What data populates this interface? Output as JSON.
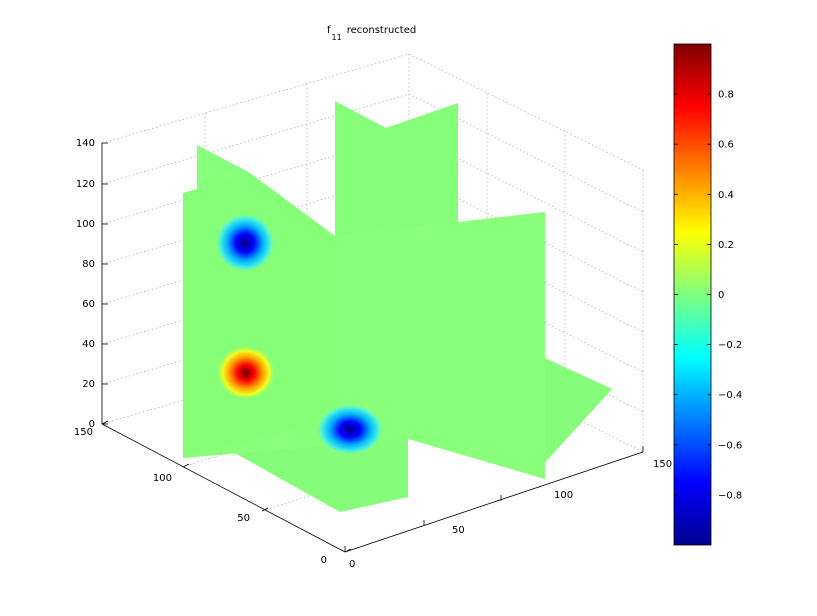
{
  "chart_data": {
    "type": "heatmap",
    "title": {
      "base": "f",
      "subscript": "11",
      "suffix": "reconstructed"
    },
    "plot_style": "3d-orthogonal-slices",
    "grid": true,
    "x_axis": {
      "ticks": [
        "0",
        "50",
        "100",
        "150"
      ],
      "range": [
        0,
        150
      ]
    },
    "y_axis": {
      "ticks": [
        "0",
        "50",
        "100",
        "150"
      ],
      "range": [
        0,
        150
      ]
    },
    "z_axis": {
      "ticks": [
        "0",
        "20",
        "40",
        "60",
        "80",
        "100",
        "120",
        "140"
      ],
      "range": [
        0,
        140
      ]
    },
    "colorbar": {
      "colormap": "jet",
      "range": [
        -1,
        1
      ],
      "tick_values": [
        0.8,
        0.6,
        0.4,
        0.2,
        0,
        -0.2,
        -0.4,
        -0.6,
        -0.8
      ],
      "tick_labels": [
        "0.8",
        "0.6",
        "0.4",
        "0.2",
        "0",
        "−0.2",
        "−0.4",
        "−0.6",
        "−0.8"
      ],
      "location": "right"
    },
    "background_value": 0,
    "features": [
      {
        "sign": "negative",
        "peak_value": -0.95,
        "slice": "vertical-left-face",
        "position": "upper"
      },
      {
        "sign": "positive",
        "peak_value": 0.95,
        "slice": "vertical-left-face",
        "position": "lower"
      },
      {
        "sign": "negative",
        "peak_value": -0.95,
        "slice": "horizontal-center",
        "position": "front"
      }
    ]
  }
}
